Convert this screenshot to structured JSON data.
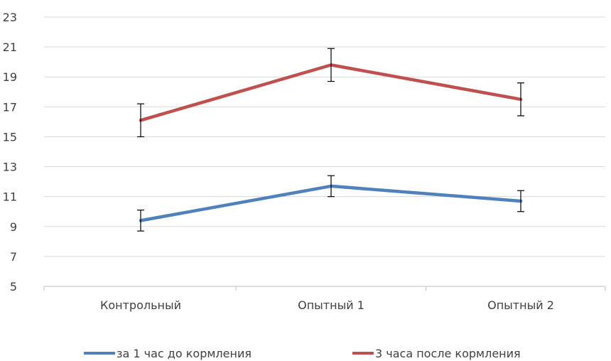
{
  "chart_data": {
    "type": "line",
    "categories": [
      "Контрольный",
      "Опытный 1",
      "Опытный 2"
    ],
    "ylim": [
      5,
      23
    ],
    "yticks": [
      5,
      7,
      9,
      11,
      13,
      15,
      17,
      19,
      21,
      23
    ],
    "grid": true,
    "legend_position": "bottom",
    "series": [
      {
        "name": "за 1 час до кормления",
        "color": "#4f81bd",
        "values": [
          9.4,
          11.7,
          10.7
        ],
        "error": [
          0.7,
          0.7,
          0.7
        ]
      },
      {
        "name": "3 часа после кормления",
        "color": "#c0504d",
        "values": [
          16.1,
          19.8,
          17.5
        ],
        "error": [
          1.1,
          1.1,
          1.1
        ]
      }
    ]
  }
}
